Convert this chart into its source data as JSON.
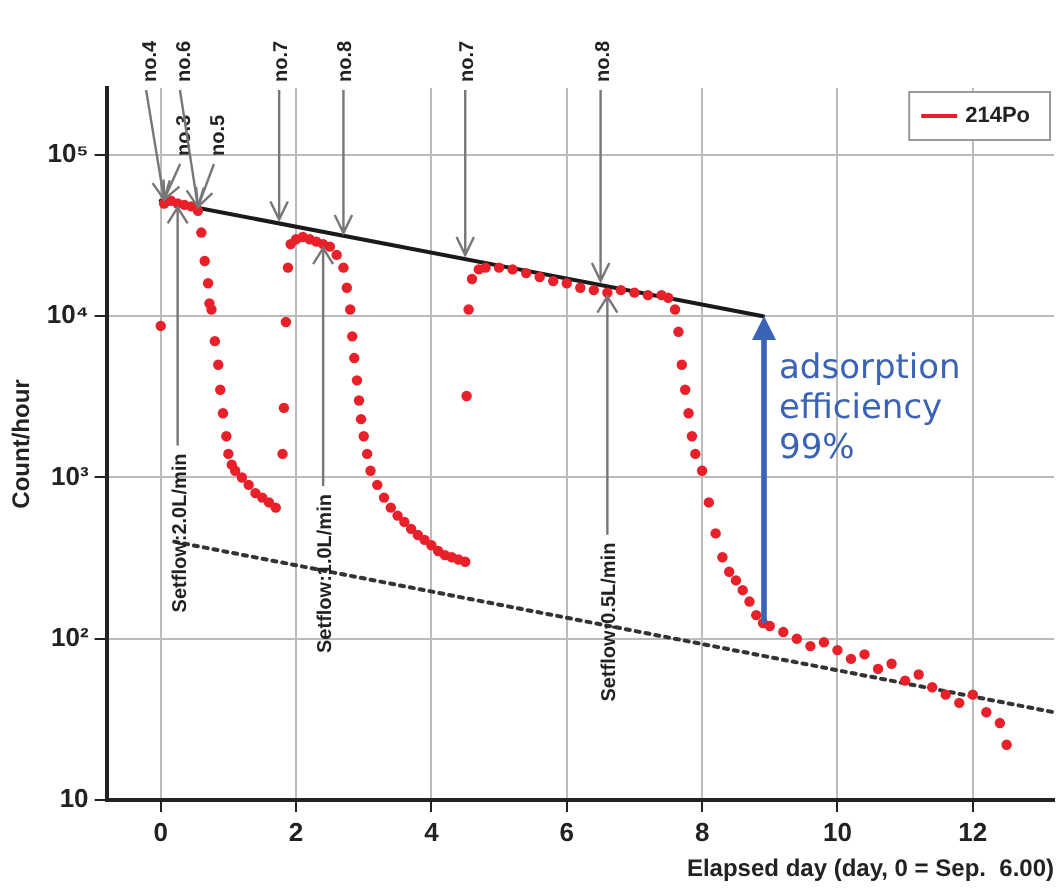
{
  "chart_data": {
    "type": "scatter",
    "xlabel": "Elapsed day (day, 0 = Sep.  6.00)",
    "ylabel": "Count/hour",
    "xlim": [
      -0.8,
      13.2
    ],
    "xticks": [
      0,
      2,
      4,
      6,
      8,
      10,
      12
    ],
    "ylim": [
      10,
      260000
    ],
    "yticks": [
      10,
      {
        "value": 100,
        "label": "10²"
      },
      {
        "value": 1000,
        "label": "10³"
      },
      {
        "value": 10000,
        "label": "10⁴"
      },
      {
        "value": 100000,
        "label": "10⁵"
      }
    ],
    "log": "y",
    "grid": true,
    "legend": "top right",
    "series": [
      {
        "name": "214Po",
        "marker": "circle",
        "color": "#e8202a",
        "x": [
          0,
          0.05,
          0.15,
          0.25,
          0.35,
          0.45,
          0.55,
          0.6,
          0.65,
          0.7,
          0.72,
          0.75,
          0.8,
          0.85,
          0.88,
          0.92,
          0.97,
          1.0,
          1.05,
          1.1,
          1.2,
          1.3,
          1.4,
          1.5,
          1.6,
          1.7,
          1.8,
          1.82,
          1.85,
          1.88,
          1.92,
          2.0,
          2.1,
          2.2,
          2.3,
          2.4,
          2.5,
          2.6,
          2.7,
          2.75,
          2.8,
          2.83,
          2.86,
          2.9,
          2.93,
          2.96,
          3.0,
          3.05,
          3.1,
          3.2,
          3.3,
          3.4,
          3.5,
          3.6,
          3.7,
          3.8,
          3.9,
          4.0,
          4.1,
          4.2,
          4.3,
          4.4,
          4.5,
          4.52,
          4.55,
          4.6,
          4.7,
          4.8,
          5.0,
          5.2,
          5.4,
          5.6,
          5.8,
          6.0,
          6.2,
          6.4,
          6.6,
          6.8,
          7.0,
          7.2,
          7.4,
          7.5,
          7.6,
          7.65,
          7.7,
          7.75,
          7.8,
          7.85,
          7.9,
          8.0,
          8.1,
          8.2,
          8.3,
          8.4,
          8.5,
          8.6,
          8.7,
          8.8,
          8.9,
          9.0,
          9.2,
          9.4,
          9.6,
          9.8,
          10.0,
          10.2,
          10.4,
          10.6,
          10.8,
          11.0,
          11.2,
          11.4,
          11.6,
          11.8,
          12.0,
          12.2,
          12.4,
          12.5
        ],
        "values": [
          8700,
          50000,
          52000,
          50000,
          49000,
          48000,
          45000,
          33000,
          22000,
          16000,
          12000,
          11000,
          7000,
          5000,
          3500,
          2500,
          1800,
          1400,
          1200,
          1100,
          1000,
          900,
          800,
          750,
          700,
          650,
          1400,
          2700,
          9200,
          20000,
          28000,
          30000,
          31000,
          30000,
          29000,
          28000,
          27000,
          24000,
          20000,
          15000,
          11000,
          7500,
          5500,
          4000,
          3000,
          2300,
          1800,
          1400,
          1100,
          900,
          750,
          650,
          580,
          530,
          480,
          440,
          410,
          380,
          350,
          330,
          320,
          310,
          300,
          3200,
          11000,
          17000,
          19500,
          20000,
          20000,
          19500,
          18500,
          17500,
          16500,
          16000,
          15000,
          14500,
          14000,
          14500,
          14000,
          13500,
          13500,
          13000,
          11000,
          8000,
          5000,
          3500,
          2500,
          1800,
          1400,
          1100,
          700,
          450,
          320,
          260,
          230,
          200,
          170,
          140,
          125,
          120,
          110,
          100,
          90,
          95,
          85,
          75,
          80,
          65,
          70,
          55,
          60,
          50,
          45,
          40,
          45,
          35,
          30,
          22
        ]
      },
      {
        "type": "line",
        "color": "#1a1a1a",
        "line_style": "solid",
        "x": [
          0,
          8.9
        ],
        "values": [
          52000,
          10000
        ]
      },
      {
        "type": "line",
        "color": "#333333",
        "line_style": "dotted",
        "x": [
          0.2,
          13.2
        ],
        "values": [
          400,
          35
        ]
      }
    ],
    "annotations": [
      {
        "text": "no.4",
        "x": 0.05,
        "y": 50000
      },
      {
        "text": "no.3",
        "x": 0.05,
        "y": 50000
      },
      {
        "text": "no.6",
        "x": 0.55,
        "y": 45000
      },
      {
        "text": "no.5",
        "x": 0.55,
        "y": 45000
      },
      {
        "text": "no.7",
        "x": 1.75,
        "y": 37600
      },
      {
        "text": "no.8",
        "x": 2.7,
        "y": 31000
      },
      {
        "text": "no.7",
        "x": 4.5,
        "y": 22600
      },
      {
        "text": "no.8",
        "x": 6.5,
        "y": 15600
      },
      {
        "text": "Setflow:2.0L/min",
        "x": 0.25,
        "y": 50000
      },
      {
        "text": "Setflow:1.0L/min",
        "x": 2.4,
        "y": 28000
      },
      {
        "text": "Setflow:0.5L/min",
        "x": 6.6,
        "y": 14000
      },
      {
        "text": "adsorption efficiency 99%",
        "x": 8.9,
        "y": 10000
      }
    ]
  }
}
